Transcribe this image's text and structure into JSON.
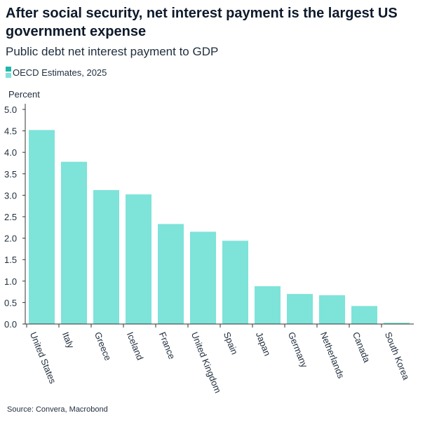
{
  "header": {
    "title": "After social security, net interest payment is the largest US government expense",
    "subtitle": "Public debt net interest payment to GDP"
  },
  "footer": {
    "source": "Source: Convera, Macrobond"
  },
  "colors": {
    "bar": "#7ee3d9",
    "legend_dark": "#1fb8aa",
    "axis": "#333333"
  },
  "chart_data": {
    "type": "bar",
    "title": "After social security, net interest payment is the largest US government expense",
    "subtitle": "Public debt net interest payment to GDP",
    "ylabel": "Percent",
    "xlabel": "",
    "ylim": [
      0,
      5
    ],
    "yticks": [
      "0.0",
      "0.5",
      "1.0",
      "1.5",
      "2.0",
      "2.5",
      "3.0",
      "3.5",
      "4.0",
      "4.5",
      "5.0"
    ],
    "legend": [
      "OECD Estimates, 2025"
    ],
    "legend_position": "top-left",
    "grid": false,
    "categories": [
      "United States",
      "Italy",
      "Greece",
      "Iceland",
      "France",
      "United Kingdom",
      "Spain",
      "Japan",
      "Germany",
      "Netherlands",
      "Canada",
      "South Korea"
    ],
    "series": [
      {
        "name": "OECD Estimates, 2025",
        "values": [
          4.52,
          3.78,
          3.12,
          3.02,
          2.33,
          2.15,
          1.94,
          0.88,
          0.7,
          0.67,
          0.42,
          0.03
        ]
      }
    ]
  }
}
